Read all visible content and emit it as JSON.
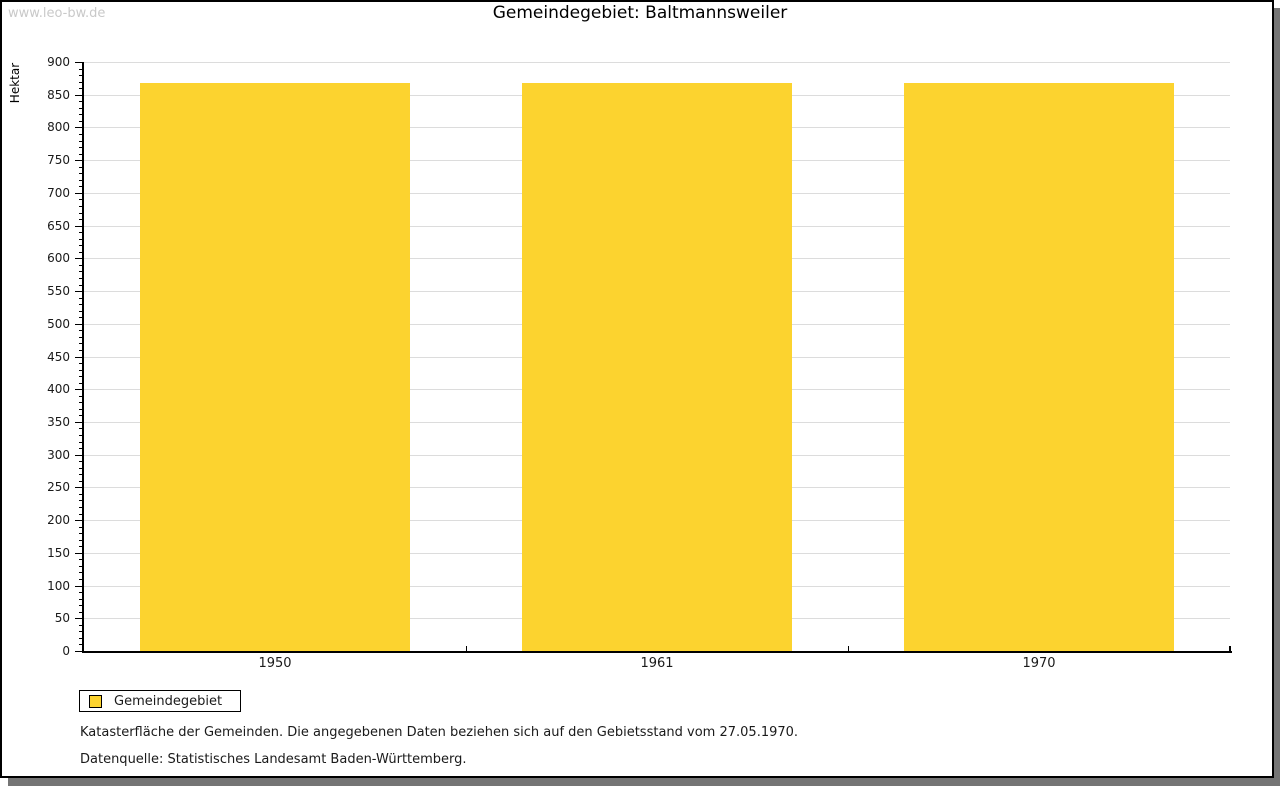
{
  "page": {
    "watermark": "www.leo-bw.de",
    "title": "Gemeindegebiet: Baltmannsweiler"
  },
  "chart_data": {
    "type": "bar",
    "title": "Gemeindegebiet: Baltmannsweiler",
    "xlabel": "",
    "ylabel": "Hektar",
    "categories": [
      "1950",
      "1961",
      "1970"
    ],
    "series": [
      {
        "name": "Gemeindegebiet",
        "values": [
          868,
          868,
          868
        ],
        "color": "#fcd32f"
      }
    ],
    "ylim": [
      0,
      900
    ],
    "y_major_step": 50,
    "y_minor_step": 10,
    "grid": true,
    "legend_position": "bottom-left"
  },
  "captions": {
    "line1": "Katasterfläche der Gemeinden. Die angegebenen Daten beziehen sich auf den Gebietsstand vom 27.05.1970.",
    "line2": "Datenquelle: Statistisches Landesamt Baden-Württemberg."
  },
  "colors": {
    "bar": "#fcd32f",
    "grid": "#dcdcdc",
    "axis": "#000000",
    "watermark": "#c9c9c9",
    "frame_shadow": "#757575"
  }
}
